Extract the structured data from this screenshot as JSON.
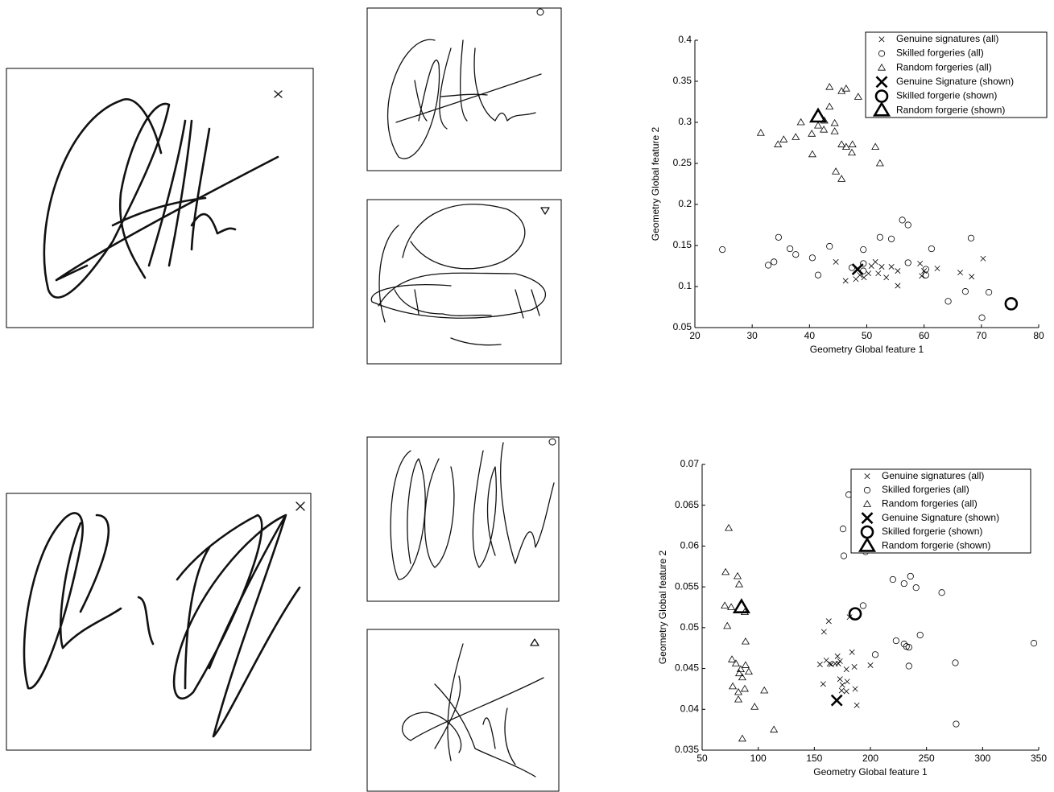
{
  "chart_data": [
    {
      "type": "scatter",
      "xlabel": "Geometry Global feature 1",
      "ylabel": "Geometry Global feature 2",
      "xlim": [
        20,
        80
      ],
      "ylim": [
        0.05,
        0.4
      ],
      "xticks": [
        20,
        30,
        40,
        50,
        60,
        70,
        80
      ],
      "yticks": [
        0.05,
        0.1,
        0.15,
        0.2,
        0.25,
        0.3,
        0.35,
        0.4
      ],
      "legend": "upper right",
      "series": [
        {
          "name": "Genuine signatures (all)",
          "marker": "x",
          "bold": false,
          "color": "#000000",
          "x": [
            44.6,
            46.3,
            48.1,
            48.8,
            49.5,
            50.3,
            50.8,
            51.5,
            52,
            52.6,
            53.4,
            54.3,
            55.4,
            55.4,
            59.3,
            60,
            62.3,
            66.3,
            68.3,
            70.3,
            59.6
          ],
          "y": [
            0.13,
            0.107,
            0.109,
            0.114,
            0.111,
            0.116,
            0.125,
            0.13,
            0.116,
            0.124,
            0.111,
            0.124,
            0.119,
            0.101,
            0.128,
            0.119,
            0.122,
            0.117,
            0.112,
            0.134,
            0.113
          ]
        },
        {
          "name": "Skilled forgeries (all)",
          "marker": "o",
          "bold": false,
          "color": "#000000",
          "x": [
            24.8,
            32.8,
            33.8,
            34.6,
            36.6,
            37.6,
            40.5,
            41.5,
            43.5,
            47.4,
            49.4,
            49.4,
            49.4,
            52.3,
            54.3,
            56.2,
            57.2,
            57.2,
            60.3,
            61.3,
            60.3,
            64.2,
            67.2,
            68.2,
            71.3,
            70.1
          ],
          "y": [
            0.145,
            0.126,
            0.13,
            0.16,
            0.146,
            0.139,
            0.135,
            0.114,
            0.149,
            0.123,
            0.119,
            0.145,
            0.128,
            0.16,
            0.158,
            0.181,
            0.175,
            0.129,
            0.114,
            0.146,
            0.121,
            0.082,
            0.094,
            0.159,
            0.093,
            0.062
          ]
        },
        {
          "name": "Random forgeries (all)",
          "marker": "^",
          "bold": false,
          "color": "#000000",
          "x": [
            31.5,
            34.5,
            35.5,
            37.6,
            38.5,
            40.4,
            40.5,
            41.5,
            42.5,
            43.5,
            43.5,
            44.4,
            44.6,
            45.6,
            45.6,
            46.4,
            45.6,
            46.4,
            47.4,
            47.5,
            48.5,
            51.5,
            52.3,
            44.4,
            42.6
          ],
          "y": [
            0.287,
            0.273,
            0.279,
            0.282,
            0.3,
            0.286,
            0.261,
            0.296,
            0.291,
            0.343,
            0.319,
            0.289,
            0.24,
            0.338,
            0.231,
            0.341,
            0.273,
            0.27,
            0.263,
            0.273,
            0.331,
            0.27,
            0.25,
            0.299,
            0.302
          ]
        },
        {
          "name": "Genuine Signature (shown)",
          "marker": "x",
          "bold": true,
          "color": "#000000",
          "x": [
            48.4
          ],
          "y": [
            0.121
          ]
        },
        {
          "name": "Skilled forgerie (shown)",
          "marker": "o",
          "bold": true,
          "color": "#000000",
          "x": [
            75.2
          ],
          "y": [
            0.079
          ]
        },
        {
          "name": "Random forgerie (shown)",
          "marker": "^",
          "bold": true,
          "color": "#000000",
          "x": [
            41.5
          ],
          "y": [
            0.307
          ]
        }
      ]
    },
    {
      "type": "scatter",
      "xlabel": "Geometry Global feature 1",
      "ylabel": "Geometry Global feature 2",
      "xlim": [
        50,
        350
      ],
      "ylim": [
        0.035,
        0.07
      ],
      "xticks": [
        50,
        100,
        150,
        200,
        250,
        300,
        350
      ],
      "yticks": [
        0.035,
        0.04,
        0.045,
        0.05,
        0.055,
        0.06,
        0.065,
        0.07
      ],
      "legend": "upper right",
      "series": [
        {
          "name": "Genuine signatures (all)",
          "marker": "x",
          "bold": false,
          "color": "#000000",
          "x": [
            162.9,
            158.6,
            155,
            160.7,
            163.6,
            165,
            168.6,
            170.7,
            171.4,
            172.9,
            174.3,
            175,
            178.6,
            179.3,
            181.4,
            183.6,
            185.7,
            186.4,
            187.9,
            157.9,
            178.6,
            200,
            172.9
          ],
          "y": [
            0.0508,
            0.0495,
            0.0455,
            0.046,
            0.0456,
            0.0455,
            0.0456,
            0.0465,
            0.0456,
            0.0437,
            0.0423,
            0.043,
            0.0449,
            0.0434,
            0.0513,
            0.047,
            0.0452,
            0.0425,
            0.0405,
            0.0431,
            0.0422,
            0.0454,
            0.0459
          ]
        },
        {
          "name": "Skilled forgeries (all)",
          "marker": "o",
          "bold": false,
          "color": "#000000",
          "x": [
            180.7,
            175.6,
            176.3,
            195.7,
            193.5,
            220,
            230,
            235.7,
            240.7,
            263.6,
            222.9,
            230,
            232.1,
            234.3,
            244.3,
            204.3,
            234.3,
            275.7,
            276.4,
            345.7,
            195
          ],
          "y": [
            0.0663,
            0.0621,
            0.0588,
            0.0593,
            0.0527,
            0.0559,
            0.0554,
            0.0563,
            0.0549,
            0.0543,
            0.0484,
            0.048,
            0.0477,
            0.0476,
            0.0491,
            0.0467,
            0.0453,
            0.0457,
            0.0382,
            0.0481,
            0.0611
          ]
        },
        {
          "name": "Random forgeries (all)",
          "marker": "^",
          "bold": false,
          "color": "#000000",
          "x": [
            73.7,
            70.9,
            81.6,
            83,
            70.2,
            75.9,
            72.4,
            76.6,
            80.1,
            84.4,
            77.3,
            82.3,
            88,
            85.8,
            88.7,
            91.6,
            88.7,
            96.8,
            105.4,
            114,
            85.8,
            82.3,
            83,
            88
          ],
          "y": [
            0.0622,
            0.0568,
            0.0563,
            0.0553,
            0.0527,
            0.0525,
            0.0502,
            0.0461,
            0.0456,
            0.0449,
            0.0428,
            0.0421,
            0.0425,
            0.0439,
            0.0454,
            0.0446,
            0.0483,
            0.0403,
            0.0423,
            0.0375,
            0.0364,
            0.0412,
            0.0444,
            0.0519
          ]
        },
        {
          "name": "Genuine Signature (shown)",
          "marker": "x",
          "bold": true,
          "color": "#000000",
          "x": [
            170
          ],
          "y": [
            0.0411
          ]
        },
        {
          "name": "Skilled forgerie (shown)",
          "marker": "o",
          "bold": true,
          "color": "#000000",
          "x": [
            186.4
          ],
          "y": [
            0.0517
          ]
        },
        {
          "name": "Random forgerie (shown)",
          "marker": "^",
          "bold": true,
          "color": "#000000",
          "x": [
            85.1
          ],
          "y": [
            0.0525
          ]
        }
      ]
    }
  ]
}
